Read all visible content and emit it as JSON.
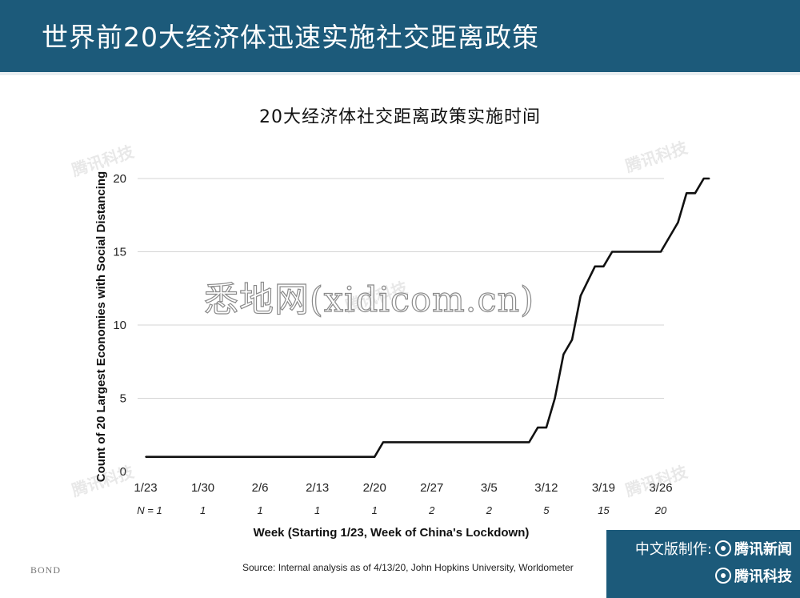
{
  "header": {
    "title": "世界前20大经济体迅速实施社交距离政策"
  },
  "chart_data": {
    "type": "line",
    "title": "20大经济体社交距离政策实施时间",
    "ylabel": "Count of 20 Largest Economies with Social Distancing",
    "xlabel": "Week (Starting 1/23, Week of China's Lockdown)",
    "ylim": [
      0,
      20
    ],
    "y_ticks": [
      0,
      5,
      10,
      15,
      20
    ],
    "grid": "horizontal",
    "categories": [
      "1/23",
      "1/30",
      "2/6",
      "2/13",
      "2/20",
      "2/27",
      "3/5",
      "3/12",
      "3/19",
      "3/26"
    ],
    "n_labels": [
      "N = 1",
      "1",
      "1",
      "1",
      "1",
      "2",
      "2",
      "5",
      "15",
      "20"
    ],
    "series": [
      {
        "color": "#111111",
        "x": [
          0,
          4,
          4.15,
          6.7,
          6.85,
          7.0,
          7.15,
          7.3,
          7.45,
          7.6,
          7.85,
          8.0,
          8.15,
          8.5,
          8.7,
          9.0,
          9.3,
          9.45,
          9.6,
          9.75,
          9.85
        ],
        "values": [
          1,
          1,
          2,
          2,
          3,
          3,
          5,
          8,
          9,
          12,
          14,
          14,
          15,
          15,
          15,
          15,
          17,
          19,
          19,
          20,
          20
        ]
      }
    ]
  },
  "source": "Source: Internal analysis as of 4/13/20, John Hopkins University, Worldometer",
  "brand": {
    "bond": "BOND"
  },
  "badge": {
    "line1": "中文版制作:",
    "line1_brand": "腾讯新闻",
    "line2_brand": "腾讯科技"
  },
  "watermarks": {
    "small": "腾讯科技",
    "big": "悉地网(xidicom.cn)"
  }
}
